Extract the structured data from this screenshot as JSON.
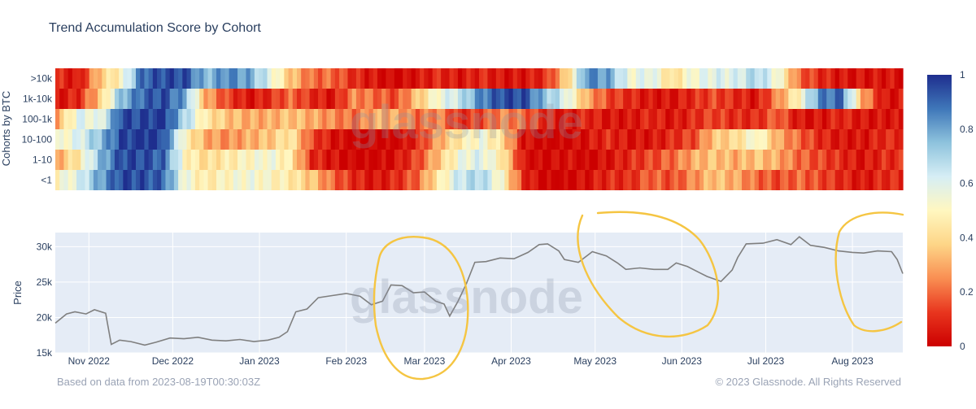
{
  "chart_data": [
    {
      "type": "heatmap",
      "title": "Trend Accumulation Score by Cohort",
      "ylabel": "Cohorts by BTC",
      "rows": [
        ">10k",
        "1k-10k",
        "100-1k",
        "10-100",
        "1-10",
        "<1"
      ],
      "colorscale_range": [
        0,
        1
      ],
      "colorbar_ticks": [
        "0",
        "0.2",
        "0.4",
        "0.6",
        "0.8",
        "1"
      ],
      "colorscale": [
        "#cc0000",
        "#e8351e",
        "#f98e52",
        "#fdd587",
        "#fff7c0",
        "#d6eef5",
        "#8ec3dd",
        "#3f77b9",
        "#1e2e8e"
      ],
      "x_range": [
        "2022-10-20",
        "2023-08-19"
      ],
      "row_scores": [
        [
          0.1,
          0.05,
          0.35,
          0.5,
          0.9,
          0.95,
          0.95,
          0.75,
          0.85,
          0.8,
          0.6,
          0.35,
          0.2,
          0.2,
          0.1,
          0.05,
          0.0,
          0.05,
          0.1,
          0.05,
          0.1,
          0.05,
          0.05,
          0.1,
          0.35,
          0.85,
          0.8,
          0.55,
          0.6,
          0.4,
          0.55,
          0.6,
          0.6,
          0.7,
          0.55,
          0.2,
          0.1,
          0.05,
          0.05,
          0.05
        ],
        [
          0.05,
          0.1,
          0.35,
          0.75,
          0.9,
          0.95,
          0.8,
          0.3,
          0.15,
          0.05,
          0.1,
          0.2,
          0.1,
          0.05,
          0.25,
          0.2,
          0.15,
          0.35,
          0.55,
          0.65,
          0.85,
          0.95,
          0.95,
          0.75,
          0.6,
          0.3,
          0.15,
          0.1,
          0.05,
          0.05,
          0.1,
          0.15,
          0.1,
          0.05,
          0.25,
          0.5,
          0.85,
          0.9,
          0.3,
          0.05
        ],
        [
          0.3,
          0.6,
          0.55,
          0.95,
          0.95,
          1.0,
          0.7,
          0.45,
          0.35,
          0.3,
          0.3,
          0.35,
          0.3,
          0.25,
          0.2,
          0.3,
          0.3,
          0.2,
          0.25,
          0.1,
          0.15,
          0.25,
          0.2,
          0.1,
          0.05,
          0.1,
          0.05,
          0.05,
          0.1,
          0.05,
          0.1,
          0.15,
          0.1,
          0.1,
          0.2,
          0.05,
          0.05,
          0.1,
          0.05,
          0.05
        ],
        [
          0.5,
          0.6,
          0.75,
          0.95,
          1.0,
          0.95,
          0.5,
          0.3,
          0.25,
          0.3,
          0.35,
          0.45,
          0.15,
          0.05,
          0.0,
          0.0,
          0.0,
          0.1,
          0.3,
          0.45,
          0.55,
          0.4,
          0.05,
          0.0,
          0.0,
          0.05,
          0.1,
          0.05,
          0.05,
          0.1,
          0.15,
          0.35,
          0.4,
          0.55,
          0.3,
          0.2,
          0.1,
          0.05,
          0.05,
          0.1
        ],
        [
          0.3,
          0.45,
          0.75,
          0.95,
          0.95,
          0.9,
          0.5,
          0.4,
          0.45,
          0.5,
          0.55,
          0.45,
          0.1,
          0.05,
          0.0,
          0.0,
          0.05,
          0.15,
          0.35,
          0.55,
          0.6,
          0.45,
          0.05,
          0.0,
          0.05,
          0.0,
          0.05,
          0.1,
          0.15,
          0.2,
          0.3,
          0.35,
          0.3,
          0.35,
          0.3,
          0.2,
          0.15,
          0.1,
          0.05,
          0.1
        ],
        [
          0.5,
          0.6,
          0.8,
          0.95,
          0.95,
          0.9,
          0.55,
          0.45,
          0.5,
          0.55,
          0.5,
          0.45,
          0.35,
          0.2,
          0.1,
          0.05,
          0.1,
          0.2,
          0.45,
          0.65,
          0.7,
          0.5,
          0.1,
          0.0,
          0.0,
          0.05,
          0.1,
          0.1,
          0.2,
          0.15,
          0.25,
          0.35,
          0.3,
          0.2,
          0.15,
          0.2,
          0.15,
          0.1,
          0.05,
          0.1
        ]
      ]
    },
    {
      "type": "line",
      "ylabel": "Price",
      "yticks": [
        "15k",
        "20k",
        "25k",
        "30k"
      ],
      "ylim": [
        15000,
        32000
      ],
      "xticks": [
        "Nov 2022",
        "Dec 2022",
        "Jan 2023",
        "Feb 2023",
        "Mar 2023",
        "Apr 2023",
        "May 2023",
        "Jun 2023",
        "Jul 2023",
        "Aug 2023"
      ],
      "x": [
        "2022-10-20",
        "2022-10-24",
        "2022-10-27",
        "2022-10-31",
        "2022-11-03",
        "2022-11-07",
        "2022-11-09",
        "2022-11-12",
        "2022-11-16",
        "2022-11-21",
        "2022-11-25",
        "2022-11-30",
        "2022-12-05",
        "2022-12-10",
        "2022-12-15",
        "2022-12-20",
        "2022-12-25",
        "2022-12-30",
        "2023-01-04",
        "2023-01-08",
        "2023-01-11",
        "2023-01-14",
        "2023-01-18",
        "2023-01-22",
        "2023-01-27",
        "2023-02-01",
        "2023-02-06",
        "2023-02-10",
        "2023-02-14",
        "2023-02-17",
        "2023-02-21",
        "2023-02-25",
        "2023-03-01",
        "2023-03-05",
        "2023-03-08",
        "2023-03-10",
        "2023-03-13",
        "2023-03-16",
        "2023-03-19",
        "2023-03-23",
        "2023-03-28",
        "2023-04-02",
        "2023-04-07",
        "2023-04-11",
        "2023-04-14",
        "2023-04-18",
        "2023-04-20",
        "2023-04-25",
        "2023-04-30",
        "2023-05-05",
        "2023-05-09",
        "2023-05-12",
        "2023-05-17",
        "2023-05-22",
        "2023-05-27",
        "2023-05-30",
        "2023-06-03",
        "2023-06-07",
        "2023-06-10",
        "2023-06-15",
        "2023-06-19",
        "2023-06-21",
        "2023-06-24",
        "2023-06-30",
        "2023-07-05",
        "2023-07-10",
        "2023-07-13",
        "2023-07-17",
        "2023-07-22",
        "2023-07-27",
        "2023-08-01",
        "2023-08-05",
        "2023-08-10",
        "2023-08-15",
        "2023-08-17",
        "2023-08-19"
      ],
      "series": [
        {
          "values": [
            19200,
            20500,
            20800,
            20500,
            21100,
            20600,
            16200,
            16800,
            16600,
            16100,
            16500,
            17100,
            17000,
            17200,
            16800,
            16700,
            16900,
            16600,
            16800,
            17200,
            18000,
            20800,
            21200,
            22800,
            23100,
            23400,
            23000,
            21800,
            22300,
            24600,
            24500,
            23500,
            23600,
            22300,
            21900,
            20200,
            22300,
            24800,
            27800,
            27900,
            28400,
            28300,
            29200,
            30300,
            30400,
            29400,
            28200,
            27800,
            29300,
            28700,
            27700,
            26800,
            27000,
            26800,
            26800,
            27700,
            27200,
            26400,
            25800,
            25100,
            26700,
            28500,
            30400,
            30500,
            31000,
            30300,
            31400,
            30200,
            29900,
            29400,
            29200,
            29100,
            29400,
            29300,
            28200,
            26200
          ]
        }
      ]
    }
  ],
  "footer": {
    "source_text": "Based on data from 2023-08-19T00:30:03Z",
    "copyright_text": "© 2023 Glassnode. All Rights Reserved"
  },
  "watermark_text": "glassnode",
  "colors": {
    "plot_bg": "#e5ecf6",
    "line": "#7f7f7f",
    "annotation": "#f5c542"
  }
}
